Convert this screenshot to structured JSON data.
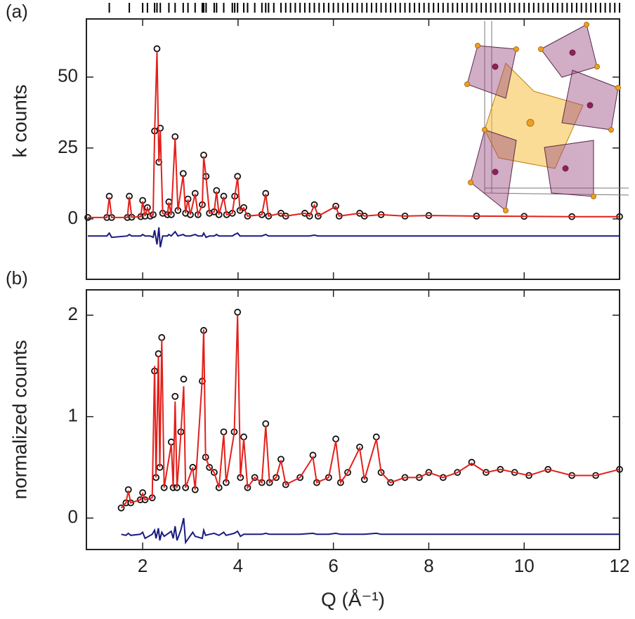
{
  "chart_data": [
    {
      "type": "line",
      "panel_label": "(a)",
      "ylabel": "k counts",
      "xlim": [
        0.82,
        12
      ],
      "ylim": [
        -21.3,
        70.5
      ],
      "yticks": [
        0,
        25,
        50
      ],
      "reflections": [
        1.3,
        1.72,
        2.0,
        2.1,
        2.25,
        2.3,
        2.37,
        2.55,
        2.68,
        2.85,
        2.95,
        3.1,
        3.25,
        3.28,
        3.33,
        3.5,
        3.55,
        3.7,
        3.88,
        3.93,
        3.99,
        4.12,
        4.2,
        4.35,
        4.5,
        4.58,
        4.64,
        4.75,
        4.9,
        5.0,
        5.1,
        5.2,
        5.3,
        5.4,
        5.5,
        5.6,
        5.7,
        5.8,
        5.9,
        6.0,
        6.1,
        6.2,
        6.3,
        6.4,
        6.5,
        6.6,
        6.7,
        6.8,
        6.9,
        7.0,
        7.1,
        7.2,
        7.3,
        7.4,
        7.5,
        7.6,
        7.7,
        7.8,
        7.9,
        8.0,
        8.1,
        8.2,
        8.3,
        8.4,
        8.5,
        8.6,
        8.7,
        8.8,
        8.9,
        9.0,
        9.1,
        9.2,
        9.3,
        9.4,
        9.5,
        9.6,
        9.7,
        9.8,
        9.9,
        10.0,
        10.1,
        10.2,
        10.3,
        10.4,
        10.5,
        10.6,
        10.7,
        10.8,
        10.9,
        11.0,
        11.1,
        11.2,
        11.3,
        11.4,
        11.5,
        11.6,
        11.7,
        11.8,
        11.9,
        12.0
      ],
      "x": [
        0.85,
        1.25,
        1.3,
        1.35,
        1.68,
        1.72,
        1.77,
        1.96,
        2.0,
        2.05,
        2.1,
        2.16,
        2.22,
        2.25,
        2.3,
        2.34,
        2.37,
        2.42,
        2.52,
        2.55,
        2.6,
        2.68,
        2.74,
        2.85,
        2.9,
        2.95,
        3.0,
        3.1,
        3.16,
        3.25,
        3.28,
        3.33,
        3.4,
        3.5,
        3.55,
        3.6,
        3.7,
        3.76,
        3.88,
        3.93,
        3.99,
        4.04,
        4.12,
        4.2,
        4.5,
        4.58,
        4.64,
        4.9,
        5.0,
        5.4,
        5.5,
        5.6,
        5.68,
        6.05,
        6.12,
        6.55,
        6.65,
        7.0,
        7.5,
        8.0,
        9.0,
        10.0,
        11.0,
        12.0
      ],
      "series": [
        {
          "style": "markers",
          "color": "#111111",
          "values": [
            0.5,
            0.5,
            8,
            0.5,
            0.5,
            8,
            0.6,
            0.8,
            6.5,
            1,
            4,
            1,
            1.5,
            31,
            60,
            20,
            32,
            2,
            1.5,
            6,
            1.5,
            29,
            3,
            16,
            2,
            7,
            1.5,
            9,
            1.5,
            5,
            22.5,
            15,
            2,
            2.5,
            10,
            1.5,
            8,
            1.5,
            2,
            8,
            15,
            3,
            4,
            1,
            1.5,
            9,
            1,
            2,
            1,
            2,
            1,
            5,
            1,
            4.5,
            1,
            2,
            1,
            1.5,
            1,
            1.2,
            1,
            0.9,
            0.8,
            0.8
          ]
        },
        {
          "style": "line",
          "color": "#e3201b",
          "values": [
            0.5,
            0.5,
            7.6,
            0.5,
            0.5,
            7.8,
            0.6,
            0.8,
            6.2,
            1,
            3.9,
            1,
            1.5,
            30,
            59,
            20,
            31,
            2,
            1.5,
            5.8,
            1.5,
            28.5,
            3,
            15.5,
            2,
            6.8,
            1.5,
            8.8,
            1.5,
            5,
            22,
            14.6,
            2,
            2.5,
            9.7,
            1.5,
            7.8,
            1.5,
            2,
            7.8,
            14.6,
            3,
            3.9,
            1,
            1.5,
            8.8,
            1,
            2,
            1,
            2,
            1,
            4.8,
            1,
            4.4,
            1,
            2,
            1,
            1.5,
            1,
            1.2,
            1,
            0.9,
            0.8,
            0.8
          ]
        },
        {
          "style": "line",
          "color": "#1a1a80",
          "values": [
            -6,
            -6,
            -5,
            -6.5,
            -6,
            -5.5,
            -6,
            -6,
            -5.5,
            -6,
            -6,
            -6,
            -6.5,
            -4,
            -9,
            -3,
            -10,
            -6,
            -6,
            -5.5,
            -6,
            -4.5,
            -6,
            -5.5,
            -6,
            -6,
            -6,
            -5.5,
            -6,
            -6,
            -5,
            -6.5,
            -6,
            -6,
            -5.5,
            -6,
            -6,
            -6,
            -6,
            -5.5,
            -5,
            -6,
            -6,
            -6,
            -6,
            -5.5,
            -6,
            -6,
            -6,
            -6,
            -6,
            -5.7,
            -6,
            -6,
            -6,
            -6,
            -6,
            -6,
            -6,
            -6,
            -6,
            -6,
            -6,
            -6
          ]
        }
      ]
    },
    {
      "type": "line",
      "panel_label": "(b)",
      "ylabel": "normalized counts",
      "xlabel": "Q (Å⁻¹)",
      "xlim": [
        0.82,
        12
      ],
      "ylim": [
        -0.31,
        2.25
      ],
      "yticks": [
        0,
        1,
        2
      ],
      "xticks": [
        2,
        4,
        6,
        8,
        10,
        12
      ],
      "x": [
        1.55,
        1.65,
        1.7,
        1.75,
        1.95,
        2.0,
        2.05,
        2.2,
        2.25,
        2.28,
        2.33,
        2.36,
        2.4,
        2.45,
        2.6,
        2.64,
        2.68,
        2.72,
        2.8,
        2.86,
        2.9,
        3.05,
        3.1,
        3.25,
        3.28,
        3.32,
        3.4,
        3.5,
        3.6,
        3.7,
        3.75,
        3.92,
        3.99,
        4.05,
        4.12,
        4.2,
        4.35,
        4.5,
        4.58,
        4.66,
        4.8,
        4.9,
        5.0,
        5.3,
        5.57,
        5.65,
        5.9,
        6.05,
        6.15,
        6.3,
        6.55,
        6.65,
        6.9,
        7.0,
        7.2,
        7.5,
        7.8,
        8.0,
        8.3,
        8.6,
        8.9,
        9.2,
        9.5,
        9.8,
        10.1,
        10.5,
        11.0,
        11.5,
        12.0
      ],
      "series": [
        {
          "style": "markers",
          "color": "#111111",
          "values": [
            0.1,
            0.15,
            0.28,
            0.15,
            0.18,
            0.25,
            0.18,
            0.2,
            1.45,
            0.4,
            1.62,
            0.5,
            1.78,
            0.3,
            0.75,
            0.3,
            1.2,
            0.3,
            0.85,
            1.37,
            0.3,
            0.5,
            0.28,
            1.35,
            1.85,
            0.6,
            0.5,
            0.45,
            0.3,
            0.85,
            0.35,
            0.85,
            2.03,
            0.4,
            0.8,
            0.3,
            0.4,
            0.35,
            0.93,
            0.35,
            0.4,
            0.58,
            0.33,
            0.4,
            0.62,
            0.35,
            0.4,
            0.78,
            0.35,
            0.45,
            0.7,
            0.38,
            0.8,
            0.45,
            0.35,
            0.4,
            0.4,
            0.45,
            0.4,
            0.45,
            0.55,
            0.45,
            0.48,
            0.45,
            0.42,
            0.48,
            0.42,
            0.42,
            0.48
          ]
        },
        {
          "style": "line",
          "color": "#e3201b",
          "values": [
            0.1,
            0.15,
            0.27,
            0.15,
            0.18,
            0.24,
            0.18,
            0.2,
            1.5,
            0.4,
            1.6,
            0.5,
            1.76,
            0.3,
            0.73,
            0.3,
            1.15,
            0.3,
            0.82,
            1.3,
            0.3,
            0.5,
            0.28,
            1.38,
            1.86,
            0.6,
            0.5,
            0.45,
            0.3,
            0.83,
            0.35,
            0.84,
            2.0,
            0.4,
            0.78,
            0.3,
            0.4,
            0.35,
            0.91,
            0.35,
            0.4,
            0.57,
            0.33,
            0.4,
            0.6,
            0.35,
            0.4,
            0.76,
            0.35,
            0.45,
            0.69,
            0.38,
            0.78,
            0.45,
            0.35,
            0.4,
            0.4,
            0.45,
            0.4,
            0.45,
            0.54,
            0.45,
            0.48,
            0.45,
            0.42,
            0.48,
            0.42,
            0.42,
            0.48
          ]
        },
        {
          "style": "line",
          "color": "#1a1a80",
          "values": [
            -0.16,
            -0.17,
            -0.15,
            -0.17,
            -0.16,
            -0.14,
            -0.2,
            -0.16,
            -0.12,
            -0.2,
            -0.1,
            -0.22,
            -0.14,
            -0.18,
            -0.13,
            -0.2,
            -0.08,
            -0.22,
            -0.12,
            0.0,
            -0.24,
            -0.14,
            -0.18,
            -0.2,
            -0.12,
            -0.17,
            -0.16,
            -0.15,
            -0.17,
            -0.14,
            -0.17,
            -0.15,
            -0.13,
            -0.18,
            -0.16,
            -0.16,
            -0.16,
            -0.16,
            -0.15,
            -0.16,
            -0.16,
            -0.16,
            -0.16,
            -0.16,
            -0.15,
            -0.16,
            -0.16,
            -0.15,
            -0.16,
            -0.16,
            -0.16,
            -0.16,
            -0.15,
            -0.16,
            -0.16,
            -0.16,
            -0.16,
            -0.16,
            -0.16,
            -0.16,
            -0.16,
            -0.16,
            -0.16,
            -0.16,
            -0.16,
            -0.16,
            -0.16,
            -0.16,
            -0.16
          ]
        }
      ]
    }
  ]
}
